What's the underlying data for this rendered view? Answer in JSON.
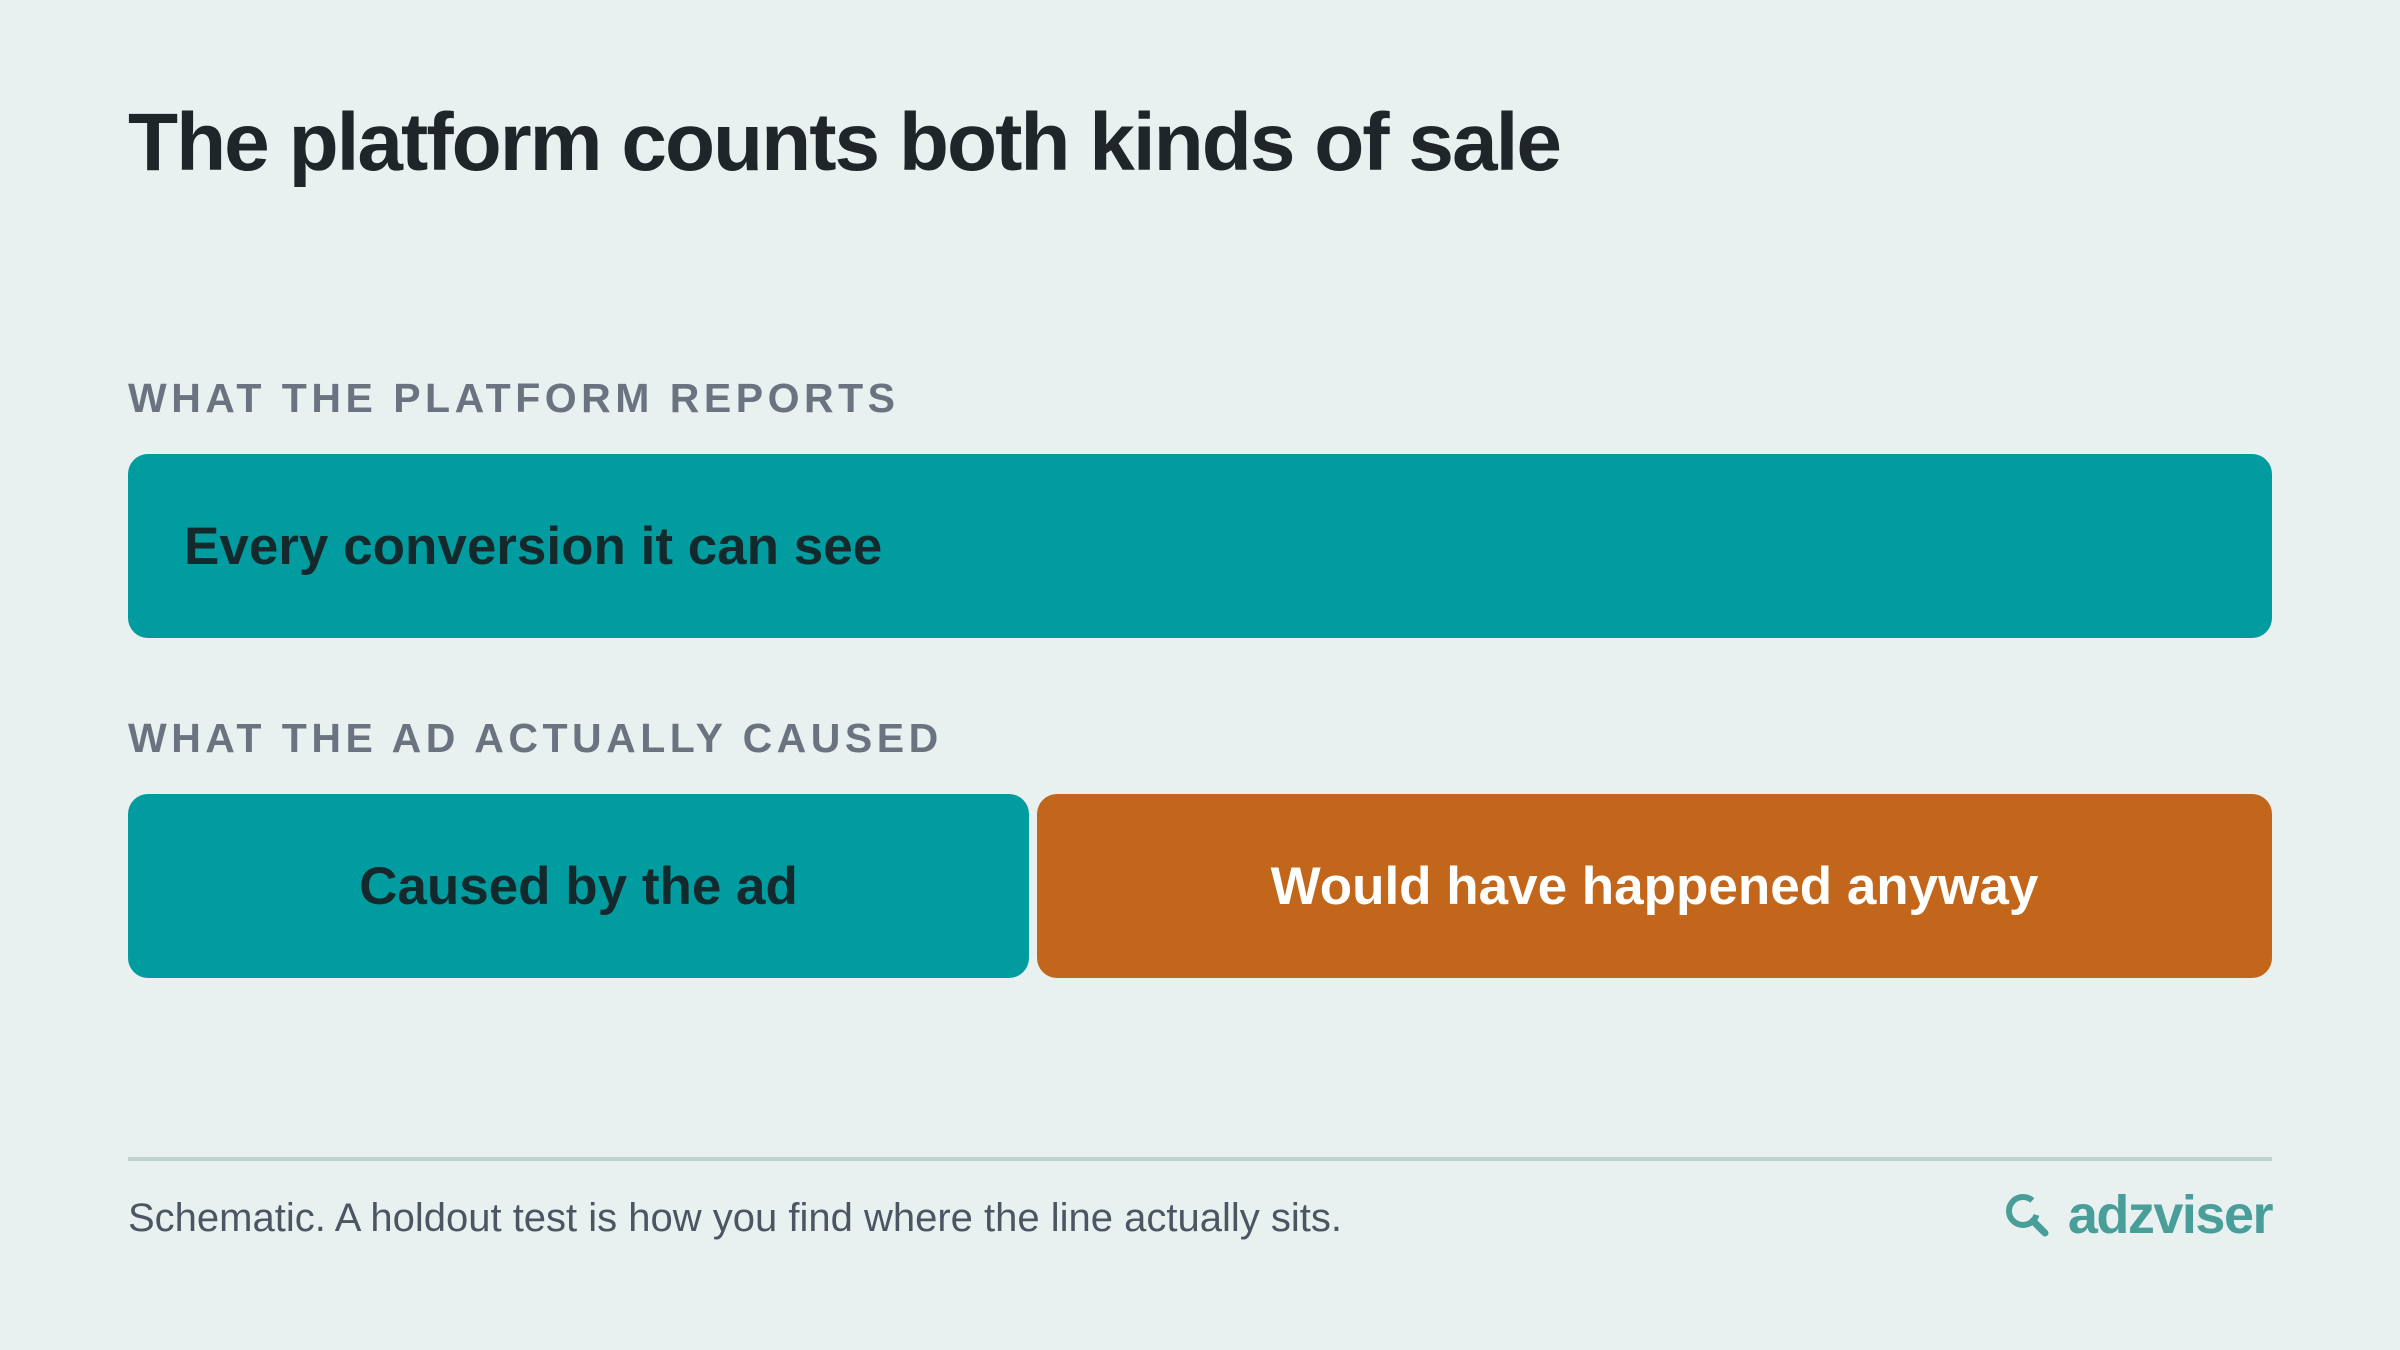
{
  "title": "The platform counts both kinds of sale",
  "sections": {
    "reported": {
      "label": "WHAT THE PLATFORM REPORTS",
      "bar_label": "Every conversion it can see"
    },
    "caused": {
      "label": "WHAT THE AD ACTUALLY CAUSED",
      "segments": [
        {
          "label": "Caused by the ad",
          "share": 0.42
        },
        {
          "label": "Would have happened anyway",
          "share": 0.58
        }
      ]
    }
  },
  "footnote": "Schematic. A holdout test is how you find where the line actually sits.",
  "brand": {
    "name": "adzviser",
    "icon": "search-icon"
  },
  "colors": {
    "background": "#e8f1f0",
    "teal": "#009ca0",
    "orange": "#c2661b",
    "dark_text": "#13292b",
    "light_text": "#ffffff",
    "label_gray": "#6b7380",
    "brand": "#4a9e9a"
  }
}
